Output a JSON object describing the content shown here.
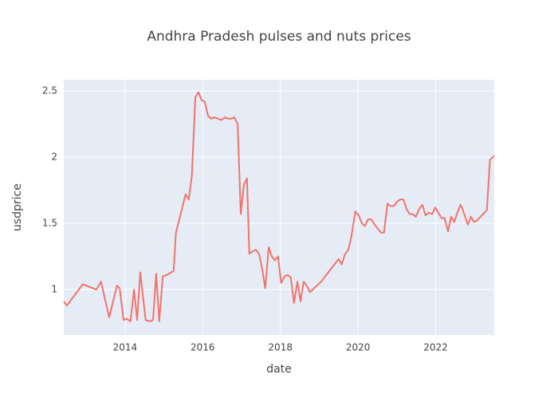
{
  "chart_data": {
    "type": "line",
    "title": "Andhra Pradesh pulses and nuts prices",
    "x_label": "date",
    "y_label": "usdprice",
    "x": [
      2012.42,
      2012.5,
      2012.91,
      2013.26,
      2013.38,
      2013.59,
      2013.79,
      2013.86,
      2013.96,
      2014.04,
      2014.14,
      2014.23,
      2014.31,
      2014.39,
      2014.53,
      2014.64,
      2014.72,
      2014.8,
      2014.88,
      2014.97,
      2015.07,
      2015.25,
      2015.31,
      2015.56,
      2015.64,
      2015.72,
      2015.81,
      2015.89,
      2015.97,
      2016.05,
      2016.14,
      2016.22,
      2016.3,
      2016.4,
      2016.48,
      2016.57,
      2016.65,
      2016.73,
      2016.81,
      2016.9,
      2016.98,
      2017.06,
      2017.14,
      2017.2,
      2017.29,
      2017.37,
      2017.45,
      2017.53,
      2017.61,
      2017.7,
      2017.78,
      2017.86,
      2017.94,
      2018.02,
      2018.11,
      2018.19,
      2018.27,
      2018.35,
      2018.44,
      2018.52,
      2018.6,
      2018.68,
      2018.76,
      2019.05,
      2019.5,
      2019.58,
      2019.67,
      2019.75,
      2019.83,
      2019.93,
      2020.02,
      2020.1,
      2020.18,
      2020.26,
      2020.34,
      2020.43,
      2020.59,
      2020.67,
      2020.76,
      2020.84,
      2020.92,
      2021.0,
      2021.08,
      2021.17,
      2021.25,
      2021.33,
      2021.41,
      2021.49,
      2021.58,
      2021.66,
      2021.74,
      2021.82,
      2021.91,
      2021.99,
      2022.07,
      2022.15,
      2022.23,
      2022.32,
      2022.4,
      2022.48,
      2022.56,
      2022.64,
      2022.69,
      2022.83,
      2022.91,
      2022.99,
      2023.06,
      2023.32,
      2023.4,
      2023.51
    ],
    "series": [
      {
        "name": "usdprice",
        "color": "#f2746b",
        "values": [
          0.91,
          0.88,
          1.04,
          1.0,
          1.06,
          0.79,
          1.03,
          1.01,
          0.77,
          0.78,
          0.76,
          1.0,
          0.77,
          1.13,
          0.77,
          0.76,
          0.77,
          1.12,
          0.76,
          1.1,
          1.11,
          1.14,
          1.43,
          1.72,
          1.68,
          1.86,
          2.45,
          2.49,
          2.43,
          2.42,
          2.31,
          2.29,
          2.3,
          2.29,
          2.28,
          2.3,
          2.29,
          2.29,
          2.3,
          2.25,
          1.57,
          1.79,
          1.84,
          1.27,
          1.29,
          1.3,
          1.27,
          1.16,
          1.01,
          1.32,
          1.25,
          1.22,
          1.25,
          1.05,
          1.1,
          1.11,
          1.09,
          0.9,
          1.06,
          0.91,
          1.06,
          1.03,
          0.98,
          1.06,
          1.23,
          1.19,
          1.27,
          1.3,
          1.4,
          1.59,
          1.56,
          1.5,
          1.48,
          1.53,
          1.53,
          1.49,
          1.43,
          1.43,
          1.65,
          1.63,
          1.63,
          1.66,
          1.68,
          1.68,
          1.61,
          1.57,
          1.57,
          1.55,
          1.61,
          1.64,
          1.56,
          1.58,
          1.57,
          1.62,
          1.58,
          1.54,
          1.54,
          1.44,
          1.55,
          1.51,
          1.58,
          1.64,
          1.61,
          1.49,
          1.55,
          1.51,
          1.52,
          1.6,
          1.98,
          2.01
        ]
      }
    ],
    "xlim": [
      2012.42,
      2023.51
    ],
    "xticks": [
      2014,
      2016,
      2018,
      2020,
      2022
    ],
    "ylim": [
      0.657,
      2.584
    ],
    "yticks": [
      1,
      1.5,
      2,
      2.5
    ],
    "grid": true
  }
}
